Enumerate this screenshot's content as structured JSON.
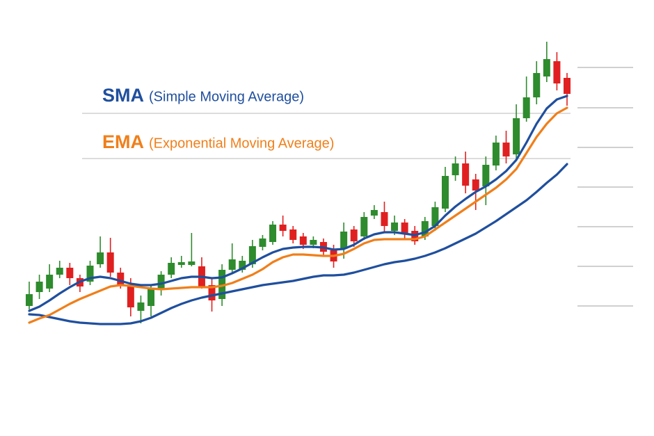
{
  "chart_data": {
    "type": "candlestick",
    "ylim": [
      0,
      457
    ],
    "yticks": [
      57,
      114,
      171,
      228,
      285,
      342,
      400
    ],
    "up_color": "#2e8b2e",
    "down_color": "#e02020",
    "candles": {
      "open": [
        57,
        77,
        82,
        102,
        112,
        97,
        92,
        117,
        134,
        105,
        87,
        50,
        57,
        80,
        102,
        116,
        116,
        114,
        87,
        67,
        109,
        109,
        117,
        142,
        149,
        174,
        167,
        157,
        145,
        149,
        137,
        139,
        167,
        157,
        187,
        192,
        165,
        177,
        165,
        157,
        172,
        197,
        245,
        262,
        239,
        229,
        259,
        292,
        275,
        327,
        357,
        387,
        409,
        385
      ],
      "high": [
        92,
        102,
        117,
        122,
        119,
        102,
        122,
        157,
        155,
        112,
        97,
        72,
        87,
        107,
        127,
        129,
        162,
        127,
        97,
        117,
        147,
        129,
        152,
        159,
        179,
        187,
        172,
        162,
        157,
        154,
        145,
        177,
        172,
        192,
        202,
        207,
        187,
        182,
        172,
        185,
        207,
        257,
        272,
        279,
        247,
        272,
        302,
        309,
        347,
        387,
        409,
        437,
        422,
        392
      ],
      "low": [
        52,
        67,
        77,
        97,
        87,
        77,
        87,
        112,
        99,
        82,
        42,
        32,
        42,
        72,
        97,
        112,
        114,
        82,
        49,
        57,
        105,
        105,
        112,
        137,
        145,
        157,
        147,
        139,
        140,
        130,
        112,
        125,
        142,
        152,
        182,
        164,
        159,
        152,
        145,
        152,
        165,
        192,
        237,
        219,
        195,
        202,
        252,
        262,
        267,
        322,
        347,
        379,
        367,
        345
      ],
      "close": [
        74,
        92,
        102,
        112,
        97,
        85,
        115,
        134,
        105,
        87,
        55,
        62,
        82,
        102,
        119,
        120,
        121,
        85,
        65,
        109,
        124,
        122,
        143,
        154,
        174,
        165,
        152,
        145,
        152,
        135,
        121,
        164,
        150,
        185,
        195,
        172,
        177,
        162,
        150,
        179,
        199,
        244,
        262,
        230,
        223,
        260,
        292,
        272,
        327,
        357,
        392,
        412,
        377,
        362
      ]
    },
    "series": [
      {
        "name": "SMA",
        "description": "(Simple Moving Average)",
        "color": "#1f4f9e",
        "values": [
          50,
          56,
          65,
          75,
          84,
          92,
          97,
          99,
          97,
          93,
          89,
          87,
          87,
          89,
          93,
          97,
          99,
          99,
          97,
          98,
          104,
          111,
          119,
          127,
          134,
          139,
          141,
          142,
          142,
          141,
          138,
          139,
          145,
          154,
          160,
          163,
          163,
          161,
          159,
          163,
          172,
          187,
          200,
          211,
          221,
          229,
          239,
          251,
          267,
          292,
          319,
          341,
          354,
          359
        ]
      },
      {
        "name": "EMA",
        "description": "(Exponential Moving Average)",
        "color": "#f07f1a",
        "values": [
          33,
          39,
          44,
          52,
          60,
          67,
          73,
          79,
          85,
          87,
          86,
          84,
          82,
          81,
          82,
          83,
          84,
          84,
          84,
          86,
          90,
          96,
          102,
          110,
          120,
          127,
          131,
          131,
          130,
          129,
          129,
          132,
          139,
          147,
          152,
          153,
          153,
          153,
          153,
          157,
          167,
          177,
          187,
          197,
          207,
          217,
          227,
          239,
          254,
          277,
          300,
          319,
          334,
          342
        ]
      },
      {
        "color": "#1f4f9e",
        "values": [
          45,
          44,
          41,
          38,
          35,
          33,
          32,
          31,
          31,
          31,
          32,
          35,
          40,
          47,
          54,
          60,
          65,
          69,
          72,
          75,
          78,
          81,
          84,
          87,
          89,
          91,
          93,
          96,
          99,
          101,
          101,
          102,
          105,
          109,
          113,
          117,
          120,
          122,
          125,
          129,
          134,
          140,
          147,
          154,
          161,
          170,
          179,
          189,
          199,
          209,
          221,
          234,
          246,
          261
        ]
      }
    ]
  }
}
